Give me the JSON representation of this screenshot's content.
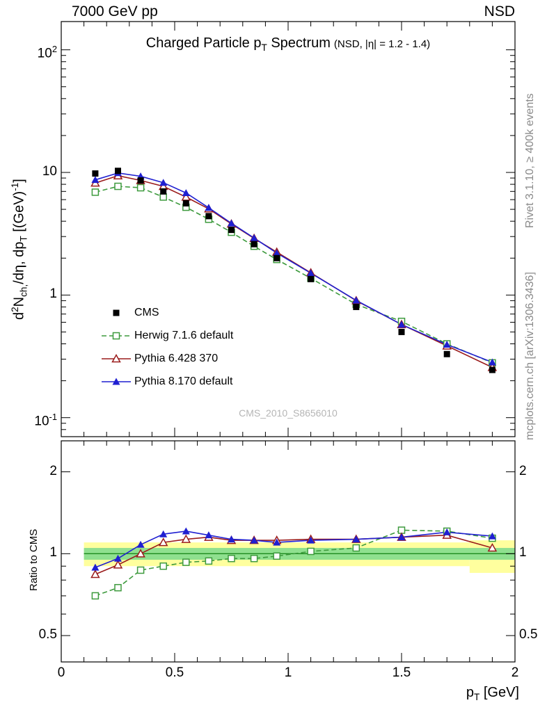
{
  "header": {
    "left": "7000 GeV pp",
    "right": "NSD"
  },
  "title": {
    "part1": "Charged Particle p",
    "part1_sub": "T",
    "part2": " Spectrum",
    "condition": "(NSD, |η| = 1.2 - 1.4)"
  },
  "axes": {
    "y": {
      "d": "d",
      "exp2": "2",
      "N": "N",
      "sub_ch": "ch,",
      "mid": "/dη, dp",
      "sub_T": "T",
      "unit": " [(GeV)",
      "exp_m1": "-1",
      "close": "]"
    },
    "x": {
      "sym": "p",
      "sub": "T",
      "unit": " [GeV]"
    },
    "ratio_label": "Ratio to CMS"
  },
  "watermark": "CMS_2010_S8656010",
  "side_notes": {
    "top": "Rivet 3.1.10, ≥ 400k events",
    "bottom": "mcplots.cern.ch [arXiv:1306.3436]"
  },
  "chart_data": {
    "type": "line",
    "title": "Charged Particle pT Spectrum (NSD, |η| = 1.2 - 1.4)",
    "xlabel": "pT [GeV]",
    "ylabel": "d2Nch/dη dpT [(GeV)-1]",
    "xlim": [
      0,
      2
    ],
    "ylim": [
      0.07,
      170
    ],
    "yscale": "log",
    "x": [
      0.15,
      0.25,
      0.35,
      0.45,
      0.55,
      0.65,
      0.75,
      0.85,
      0.95,
      1.1,
      1.3,
      1.5,
      1.7,
      1.9
    ],
    "xticks": [
      {
        "v": 0,
        "label": "0"
      },
      {
        "v": 0.5,
        "label": "0.5"
      },
      {
        "v": 1,
        "label": "1"
      },
      {
        "v": 1.5,
        "label": "1.5"
      },
      {
        "v": 2,
        "label": "2"
      }
    ],
    "yticks": [
      {
        "v": 0.1,
        "base": "10",
        "exp": "-1"
      },
      {
        "v": 1,
        "base": "1",
        "exp": ""
      },
      {
        "v": 10,
        "base": "10",
        "exp": ""
      },
      {
        "v": 100,
        "base": "10",
        "exp": "2"
      }
    ],
    "series": [
      {
        "name": "CMS",
        "color": "#000000",
        "marker": "square-filled",
        "line": "none",
        "values": [
          9.8,
          10.3,
          8.6,
          7.0,
          5.6,
          4.4,
          3.4,
          2.6,
          2.0,
          1.35,
          0.8,
          0.5,
          0.33,
          0.245
        ]
      },
      {
        "name": "Herwig 7.1.6 default",
        "color": "#3d9a3d",
        "marker": "square-open",
        "line": "dashed",
        "values": [
          6.9,
          7.7,
          7.5,
          6.3,
          5.2,
          4.15,
          3.25,
          2.5,
          1.95,
          1.37,
          0.84,
          0.61,
          0.4,
          0.28
        ]
      },
      {
        "name": "Pythia 6.428 370",
        "color": "#9a1b1b",
        "marker": "triangle-open",
        "line": "solid",
        "values": [
          8.2,
          9.4,
          8.6,
          7.7,
          6.3,
          5.05,
          3.8,
          2.9,
          2.24,
          1.52,
          0.9,
          0.575,
          0.385,
          0.257
        ]
      },
      {
        "name": "Pythia 8.170 default",
        "color": "#1f1fd1",
        "marker": "triangle-filled",
        "line": "solid",
        "values": [
          8.7,
          9.9,
          9.3,
          8.25,
          6.8,
          5.15,
          3.85,
          2.92,
          2.2,
          1.51,
          0.905,
          0.575,
          0.395,
          0.283
        ]
      }
    ],
    "ratio": {
      "ylim": [
        0.4,
        2.6
      ],
      "yscale": "log",
      "yticks": [
        {
          "v": 0.5,
          "label": "0.5"
        },
        {
          "v": 1,
          "label": "1"
        },
        {
          "v": 2,
          "label": "2"
        }
      ],
      "bands": {
        "yellow_color": "#ffff9e",
        "green_color": "#8fe08f",
        "line_color": "#1d8a1d",
        "yellow": [
          {
            "x0": 0.1,
            "x1": 1.8,
            "lo": 0.9,
            "hi": 1.1
          },
          {
            "x0": 1.8,
            "x1": 2.0,
            "lo": 0.85,
            "hi": 1.12
          }
        ],
        "green": [
          {
            "x0": 0.1,
            "x1": 2.0,
            "lo": 0.95,
            "hi": 1.05
          }
        ]
      },
      "series": [
        {
          "name": "Herwig 7.1.6 default",
          "values": [
            0.7,
            0.75,
            0.87,
            0.9,
            0.93,
            0.94,
            0.96,
            0.96,
            0.98,
            1.02,
            1.05,
            1.22,
            1.21,
            1.14
          ]
        },
        {
          "name": "Pythia 6.428 370",
          "values": [
            0.84,
            0.91,
            1.0,
            1.1,
            1.13,
            1.15,
            1.12,
            1.12,
            1.12,
            1.13,
            1.13,
            1.15,
            1.17,
            1.05
          ]
        },
        {
          "name": "Pythia 8.170 default",
          "values": [
            0.89,
            0.96,
            1.08,
            1.18,
            1.21,
            1.17,
            1.13,
            1.12,
            1.1,
            1.12,
            1.13,
            1.15,
            1.2,
            1.16
          ]
        }
      ]
    }
  }
}
